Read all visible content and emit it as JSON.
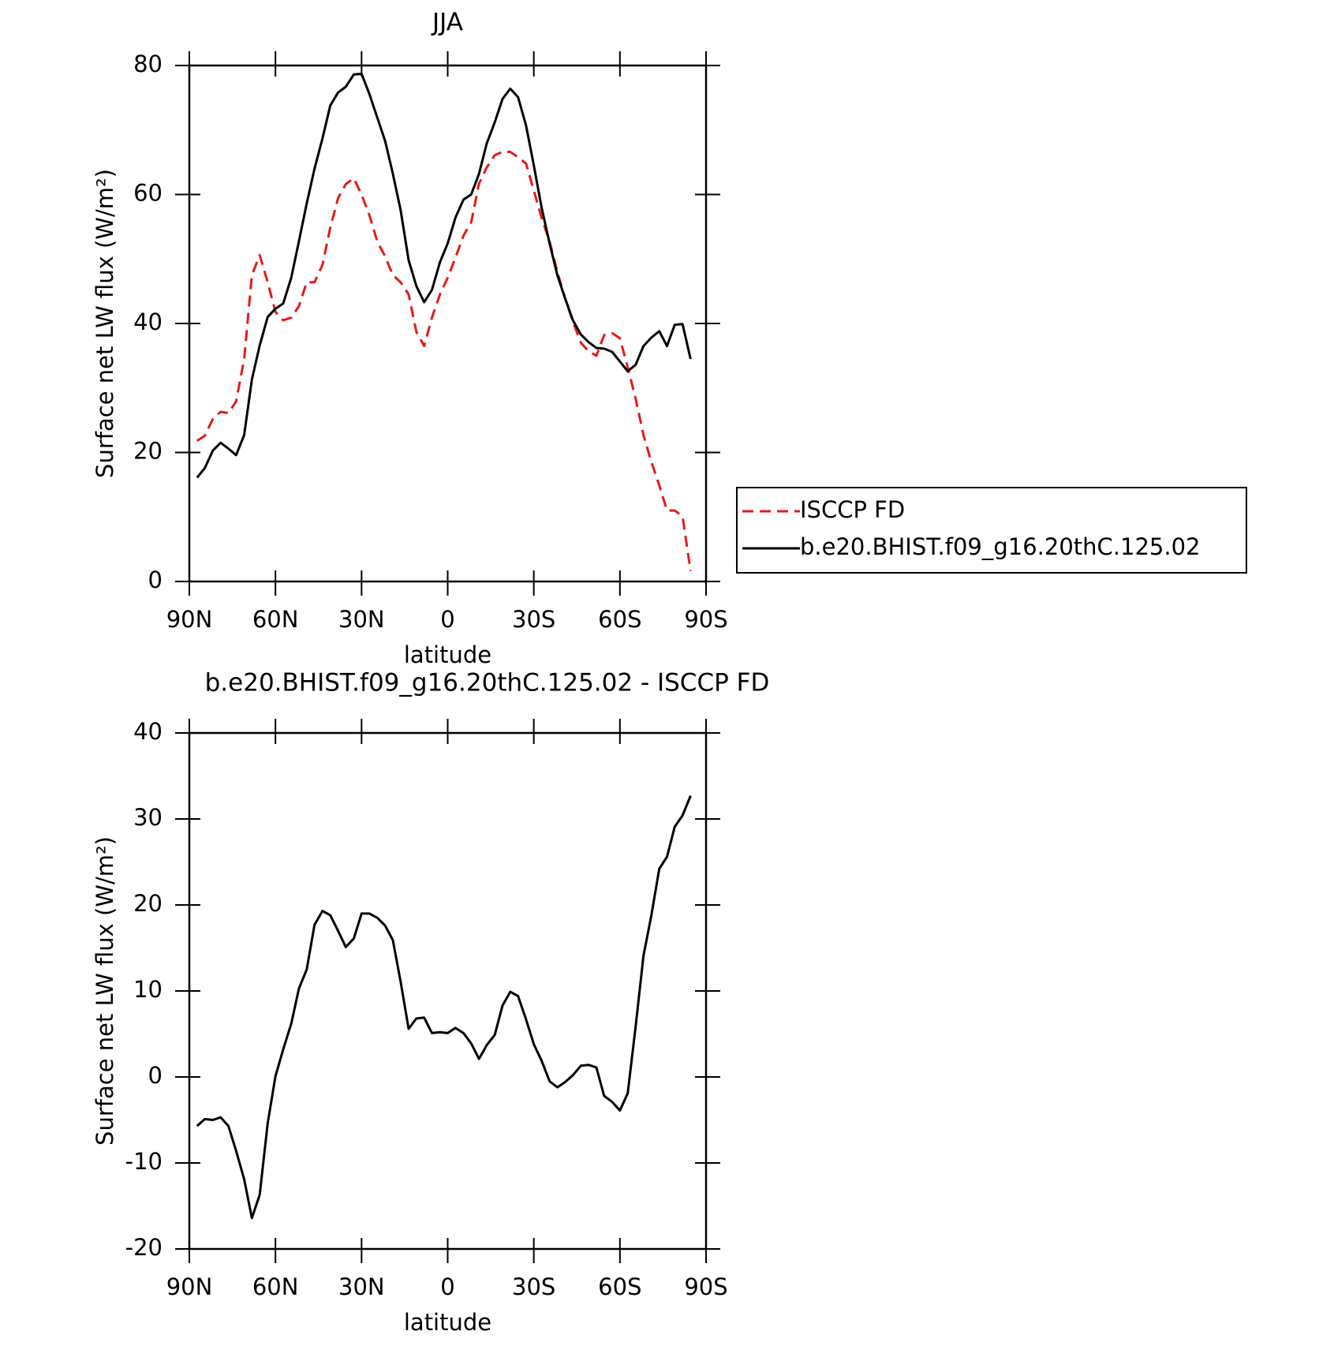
{
  "chart_data": [
    {
      "type": "line",
      "title": "JJA",
      "x_label": "latitude",
      "y_label": "Surface net LW flux (W/m²)",
      "x": [
        87.3,
        84.6,
        81.8,
        79.1,
        76.4,
        73.7,
        70.9,
        68.2,
        65.5,
        62.7,
        60,
        57.3,
        54.5,
        51.8,
        49.1,
        46.4,
        43.6,
        40.9,
        38.2,
        35.5,
        32.7,
        30,
        27.3,
        24.5,
        21.8,
        19.1,
        16.4,
        13.6,
        10.9,
        8.2,
        5.5,
        2.7,
        0,
        -2.7,
        -5.5,
        -8.2,
        -10.9,
        -13.6,
        -16.4,
        -19.1,
        -21.8,
        -24.5,
        -27.3,
        -30,
        -32.7,
        -35.5,
        -38.2,
        -40.9,
        -43.6,
        -46.4,
        -49.1,
        -51.8,
        -54.5,
        -57.3,
        -60,
        -62.7,
        -65.5,
        -68.2,
        -70.9,
        -73.7,
        -76.4,
        -79.1,
        -81.8,
        -84.6,
        -87.3
      ],
      "series": [
        {
          "name": "ISCCP FD",
          "color": "#e41a1c",
          "linestyle": "dashed",
          "values": [
            21.8,
            22.6,
            25.2,
            26.3,
            26.1,
            27.9,
            34.5,
            47.5,
            50.6,
            46.4,
            41.8,
            40.5,
            40.9,
            42.7,
            46.4,
            46.4,
            49.1,
            54.9,
            59.4,
            61.6,
            62.5,
            60,
            56.8,
            52.7,
            50.4,
            47.5,
            46.4,
            44.5,
            38.7,
            36.5,
            40.9,
            44.5,
            47.1,
            50.2,
            53.6,
            55.7,
            61.7,
            64.2,
            66.1,
            66.6,
            66.6,
            65.8,
            64.8,
            60.6,
            56.4,
            52.7,
            48,
            43.9,
            40.3,
            37,
            35.7,
            35,
            38.2,
            38.5,
            37.7,
            33.2,
            28.3,
            22.7,
            18.6,
            14.9,
            11,
            11,
            10.1,
            1.6,
            null
          ]
        },
        {
          "name": "b.e20.BHIST.f09_g16.20thC.125.02",
          "color": "#000000",
          "linestyle": "solid",
          "values": [
            16.1,
            17.6,
            20.3,
            21.5,
            20.6,
            19.6,
            22.7,
            31.3,
            36.6,
            41,
            42.3,
            43.1,
            47.1,
            52.8,
            58.6,
            64,
            68.7,
            73.8,
            75.8,
            76.7,
            78.6,
            78.7,
            75.6,
            71.9,
            68.3,
            63.2,
            57.6,
            49.8,
            45.8,
            43.3,
            45.2,
            49.5,
            52.4,
            56.4,
            59.2,
            60,
            63.2,
            67.9,
            71.2,
            74.8,
            76.4,
            75.1,
            70.7,
            64.5,
            58,
            52.4,
            47.5,
            43.9,
            40.5,
            38.3,
            37.1,
            36.2,
            36.1,
            35.6,
            34.1,
            32.6,
            33.6,
            36.5,
            37.8,
            38.8,
            36.5,
            39.8,
            39.9,
            34.5,
            null
          ]
        }
      ],
      "xlim": [
        90,
        -90
      ],
      "ylim": [
        0,
        80
      ],
      "xticks": [
        {
          "value": 90,
          "label": "90N"
        },
        {
          "value": 60,
          "label": "60N"
        },
        {
          "value": 30,
          "label": "30N"
        },
        0,
        {
          "value": -30,
          "label": "30S"
        },
        {
          "value": -60,
          "label": "60S"
        },
        {
          "value": -90,
          "label": "90S"
        }
      ],
      "yticks": [
        0,
        20,
        40,
        60,
        80
      ],
      "legend": "right"
    },
    {
      "type": "line",
      "title": "b.e20.BHIST.f09_g16.20thC.125.02 - ISCCP FD",
      "x_label": "latitude",
      "y_label": "Surface net LW flux (W/m²)",
      "x": [
        87.3,
        84.6,
        81.8,
        79.1,
        76.4,
        73.7,
        70.9,
        68.2,
        65.5,
        62.7,
        60,
        57.3,
        54.5,
        51.8,
        49.1,
        46.4,
        43.6,
        40.9,
        38.2,
        35.5,
        32.7,
        30,
        27.3,
        24.5,
        21.8,
        19.1,
        16.4,
        13.6,
        10.9,
        8.2,
        5.5,
        2.7,
        0,
        -2.7,
        -5.5,
        -8.2,
        -10.9,
        -13.6,
        -16.4,
        -19.1,
        -21.8,
        -24.5,
        -27.3,
        -30,
        -32.7,
        -35.5,
        -38.2,
        -40.9,
        -43.6,
        -46.4,
        -49.1,
        -51.8,
        -54.5,
        -57.3,
        -60,
        -62.7,
        -65.5,
        -68.2,
        -70.9,
        -73.7,
        -76.4,
        -79.1,
        -81.8,
        -84.6,
        -87.3
      ],
      "series": [
        {
          "color": "#000000",
          "linestyle": "solid",
          "values": [
            -5.7,
            -4.9,
            -5.0,
            -4.7,
            -5.7,
            -8.6,
            -11.9,
            -16.4,
            -13.7,
            -5.4,
            0.1,
            3.2,
            6.2,
            10.3,
            12.5,
            17.7,
            19.3,
            18.8,
            17.0,
            15.1,
            16.1,
            19.0,
            19.0,
            18.5,
            17.6,
            15.9,
            11.1,
            5.6,
            6.8,
            6.9,
            5.1,
            5.2,
            5.1,
            5.7,
            5.1,
            3.9,
            2.1,
            3.7,
            4.9,
            8.3,
            9.9,
            9.4,
            6.7,
            3.8,
            1.9,
            -0.5,
            -1.2,
            -0.6,
            0.2,
            1.3,
            1.4,
            1.1,
            -2.2,
            -2.9,
            -3.9,
            -1.9,
            5.9,
            14.1,
            18.7,
            24.2,
            25.6,
            29.1,
            30.4,
            32.7,
            null
          ]
        }
      ],
      "xlim": [
        90,
        -90
      ],
      "ylim": [
        -20,
        40
      ],
      "xticks": [
        {
          "value": 90,
          "label": "90N"
        },
        {
          "value": 60,
          "label": "60N"
        },
        {
          "value": 30,
          "label": "30N"
        },
        0,
        {
          "value": -30,
          "label": "30S"
        },
        {
          "value": -60,
          "label": "60S"
        },
        {
          "value": -90,
          "label": "90S"
        }
      ],
      "yticks": [
        -20,
        -10,
        0,
        10,
        20,
        30,
        40
      ]
    }
  ]
}
